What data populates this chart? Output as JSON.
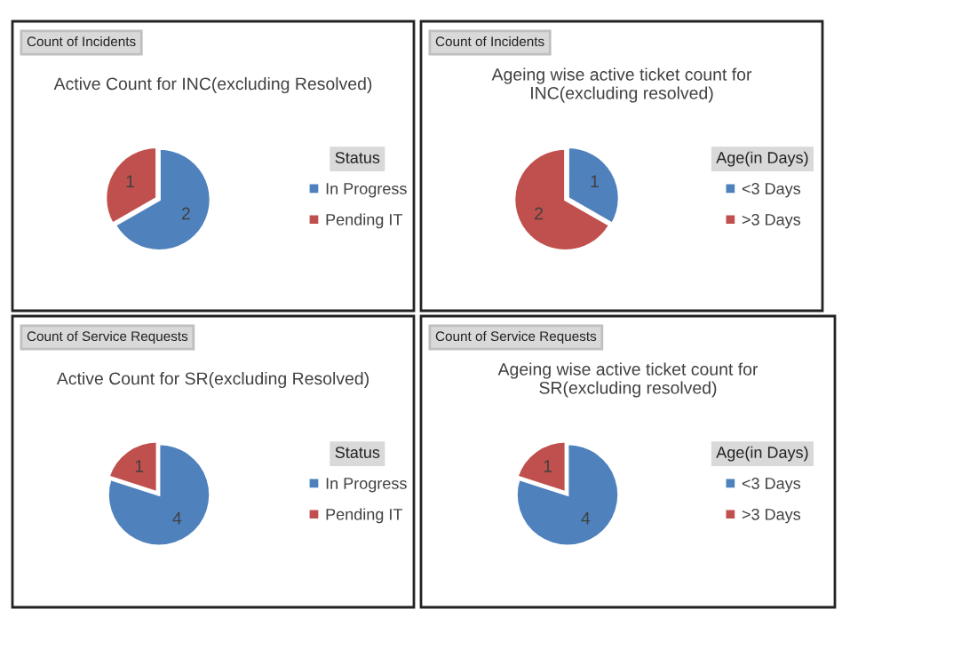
{
  "chart_data": [
    {
      "type": "pie",
      "title": "Active Count for INC(excluding Resolved)",
      "annotations": [
        "Count of Incidents"
      ],
      "categories": [
        "In Progress",
        "Pending IT"
      ],
      "values": [
        2,
        1
      ],
      "colors": [
        "#4f81bd",
        "#c0504d"
      ],
      "legend_title": "Status",
      "legend": "right",
      "data_labels": true
    },
    {
      "type": "pie",
      "title": "Ageing wise active ticket count for INC(excluding resolved)",
      "annotations": [
        "Count of Incidents"
      ],
      "categories": [
        "<3 Days",
        ">3 Days"
      ],
      "values": [
        1,
        2
      ],
      "colors": [
        "#4f81bd",
        "#c0504d"
      ],
      "legend_title": "Age(in Days)",
      "legend": "right",
      "data_labels": true
    },
    {
      "type": "pie",
      "title": "Active Count for SR(excluding Resolved)",
      "annotations": [
        "Count of Service Requests"
      ],
      "categories": [
        "In Progress",
        "Pending IT"
      ],
      "values": [
        4,
        1
      ],
      "colors": [
        "#4f81bd",
        "#c0504d"
      ],
      "legend_title": "Status",
      "legend": "right",
      "data_labels": true
    },
    {
      "type": "pie",
      "title": "Ageing wise active ticket count for SR(excluding resolved)",
      "annotations": [
        "Count of Service Requests"
      ],
      "categories": [
        "<3 Days",
        ">3 Days"
      ],
      "values": [
        4,
        1
      ],
      "colors": [
        "#4f81bd",
        "#c0504d"
      ],
      "legend_title": "Age(in Days)",
      "legend": "right",
      "data_labels": true
    }
  ]
}
